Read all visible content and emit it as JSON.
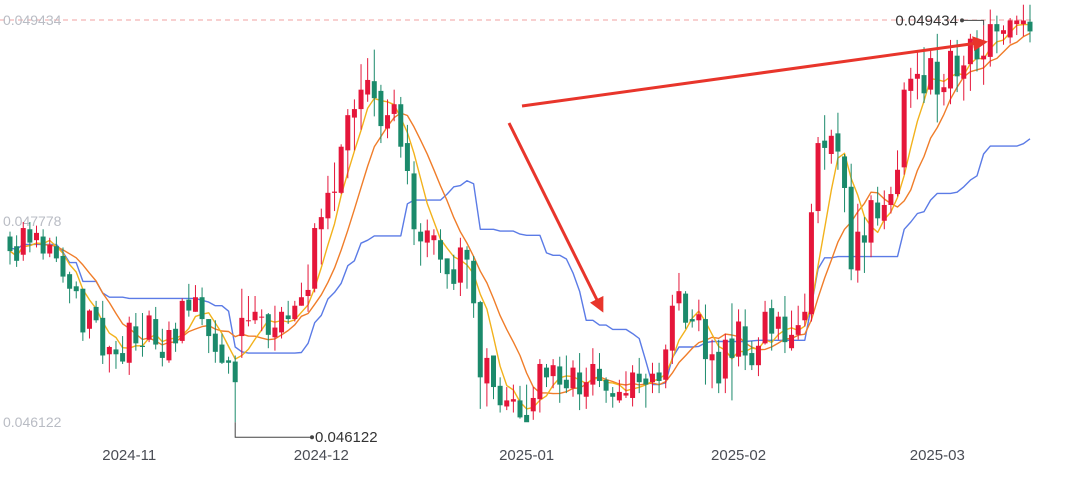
{
  "chart_data": {
    "type": "candlestick",
    "y_axis": {
      "ticks": [
        "0.049434",
        "0.047778",
        "0.046122"
      ],
      "tick_values": [
        0.049434,
        0.047778,
        0.046122
      ],
      "range": [
        0.04585,
        0.04965
      ]
    },
    "x_axis": {
      "ticks": [
        "2024-11",
        "2024-12",
        "2025-01",
        "2025-02",
        "2025-03"
      ],
      "tick_candle_index": [
        18,
        47,
        78,
        110,
        140
      ]
    },
    "annotations": {
      "high_label": "0.049434",
      "low_label": "0.046122",
      "high_candle_index": 147,
      "low_candle_index": 34
    },
    "colors": {
      "up": "#e5163a",
      "down": "#1b8a6b",
      "ma_fast": "#f2b21c",
      "ma_mid": "#f07d2a",
      "ma_slow": "#5b7be6",
      "dash": "#f0a0a0",
      "arrow": "#e8352b",
      "axis_text": "#b9bcc4"
    },
    "candles": [
      [
        0.04765,
        0.04753,
        0.04769,
        0.04742
      ],
      [
        0.04757,
        0.04745,
        0.04766,
        0.0474
      ],
      [
        0.0475,
        0.04772,
        0.04777,
        0.04745
      ],
      [
        0.04771,
        0.0476,
        0.04777,
        0.04752
      ],
      [
        0.04762,
        0.04768,
        0.04774,
        0.04756
      ],
      [
        0.04765,
        0.04751,
        0.04771,
        0.04746
      ],
      [
        0.04751,
        0.04758,
        0.04764,
        0.04748
      ],
      [
        0.04757,
        0.04747,
        0.04765,
        0.04744
      ],
      [
        0.04749,
        0.04732,
        0.04756,
        0.04727
      ],
      [
        0.04734,
        0.04722,
        0.04736,
        0.0471
      ],
      [
        0.04724,
        0.0472,
        0.04728,
        0.04714
      ],
      [
        0.04722,
        0.04686,
        0.04722,
        0.04679
      ],
      [
        0.04689,
        0.04704,
        0.04705,
        0.04681
      ],
      [
        0.04707,
        0.04696,
        0.04712,
        0.04694
      ],
      [
        0.04698,
        0.04667,
        0.04712,
        0.0466
      ],
      [
        0.04668,
        0.04674,
        0.04675,
        0.04653
      ],
      [
        0.04672,
        0.04668,
        0.04679,
        0.04656
      ],
      [
        0.04669,
        0.04662,
        0.04683,
        0.0466
      ],
      [
        0.04661,
        0.04694,
        0.04699,
        0.04651
      ],
      [
        0.04691,
        0.04677,
        0.04702,
        0.04671
      ],
      [
        0.04675,
        0.04674,
        0.04702,
        0.04666
      ],
      [
        0.0468,
        0.047,
        0.04704,
        0.04678
      ],
      [
        0.04697,
        0.04676,
        0.04707,
        0.04672
      ],
      [
        0.0467,
        0.04665,
        0.04689,
        0.04658
      ],
      [
        0.04663,
        0.04688,
        0.04695,
        0.04661
      ],
      [
        0.04689,
        0.04677,
        0.04694,
        0.0467
      ],
      [
        0.04679,
        0.04712,
        0.04714,
        0.04677
      ],
      [
        0.04713,
        0.04704,
        0.04726,
        0.04699
      ],
      [
        0.04703,
        0.04715,
        0.04725,
        0.04703
      ],
      [
        0.04715,
        0.04697,
        0.04723,
        0.04692
      ],
      [
        0.04697,
        0.04683,
        0.04697,
        0.04669
      ],
      [
        0.04685,
        0.0467,
        0.04696,
        0.04661
      ],
      [
        0.04676,
        0.04661,
        0.04685,
        0.0466
      ],
      [
        0.04663,
        0.04661,
        0.04666,
        0.04652
      ],
      [
        0.04662,
        0.04645,
        0.04667,
        0.04612
      ],
      [
        0.04683,
        0.04698,
        0.04722,
        0.04665
      ],
      [
        0.04696,
        0.04696,
        0.04716,
        0.04691
      ],
      [
        0.04696,
        0.04703,
        0.04716,
        0.04693
      ],
      [
        0.04699,
        0.04699,
        0.04705,
        0.04687
      ],
      [
        0.04701,
        0.04684,
        0.04702,
        0.04673
      ],
      [
        0.04682,
        0.0469,
        0.04708,
        0.04671
      ],
      [
        0.04686,
        0.04703,
        0.04707,
        0.04681
      ],
      [
        0.047,
        0.04697,
        0.04712,
        0.04693
      ],
      [
        0.04697,
        0.04708,
        0.04712,
        0.04695
      ],
      [
        0.04708,
        0.04715,
        0.04727,
        0.04708
      ],
      [
        0.04716,
        0.04721,
        0.04742,
        0.04703
      ],
      [
        0.04722,
        0.04772,
        0.04776,
        0.04719
      ],
      [
        0.04771,
        0.04781,
        0.04788,
        0.04742
      ],
      [
        0.0478,
        0.04801,
        0.04815,
        0.04771
      ],
      [
        0.04801,
        0.04802,
        0.04826,
        0.04786
      ],
      [
        0.04801,
        0.04839,
        0.04841,
        0.048
      ],
      [
        0.04836,
        0.04865,
        0.0487,
        0.04813
      ],
      [
        0.04863,
        0.0487,
        0.04878,
        0.04836
      ],
      [
        0.0487,
        0.04886,
        0.04907,
        0.04853
      ],
      [
        0.04882,
        0.04894,
        0.04912,
        0.04876
      ],
      [
        0.04893,
        0.04879,
        0.04919,
        0.04864
      ],
      [
        0.04885,
        0.04856,
        0.0489,
        0.04842
      ],
      [
        0.04854,
        0.04865,
        0.04878,
        0.04846
      ],
      [
        0.04866,
        0.04874,
        0.04886,
        0.0486
      ],
      [
        0.04874,
        0.04839,
        0.0488,
        0.0483
      ],
      [
        0.04842,
        0.04819,
        0.04857,
        0.04808
      ],
      [
        0.04817,
        0.04771,
        0.04827,
        0.04758
      ],
      [
        0.04769,
        0.04761,
        0.04776,
        0.04741
      ],
      [
        0.0476,
        0.0477,
        0.04779,
        0.04748
      ],
      [
        0.04762,
        0.04766,
        0.04771,
        0.0475
      ],
      [
        0.04762,
        0.04746,
        0.04771,
        0.04735
      ],
      [
        0.04747,
        0.04734,
        0.04747,
        0.04722
      ],
      [
        0.04738,
        0.04726,
        0.0475,
        0.04721
      ],
      [
        0.04727,
        0.04756,
        0.04764,
        0.04716
      ],
      [
        0.04754,
        0.04746,
        0.04757,
        0.04722
      ],
      [
        0.04745,
        0.0471,
        0.04749,
        0.04698
      ],
      [
        0.04711,
        0.04649,
        0.04712,
        0.04623
      ],
      [
        0.04644,
        0.04665,
        0.04673,
        0.04625
      ],
      [
        0.04667,
        0.04641,
        0.04667,
        0.04631
      ],
      [
        0.04642,
        0.04626,
        0.04649,
        0.0462
      ],
      [
        0.04625,
        0.0463,
        0.04641,
        0.04622
      ],
      [
        0.04629,
        0.04631,
        0.04643,
        0.0462
      ],
      [
        0.0463,
        0.04616,
        0.04642,
        0.04615
      ],
      [
        0.04618,
        0.04612,
        0.04643,
        0.04613
      ],
      [
        0.04621,
        0.04632,
        0.04641,
        0.04614
      ],
      [
        0.04631,
        0.0466,
        0.04664,
        0.0462
      ],
      [
        0.04657,
        0.04649,
        0.0466,
        0.04641
      ],
      [
        0.0465,
        0.04659,
        0.04664,
        0.0464
      ],
      [
        0.04658,
        0.04643,
        0.04666,
        0.04628
      ],
      [
        0.04647,
        0.0464,
        0.04667,
        0.04636
      ],
      [
        0.0464,
        0.04657,
        0.04663,
        0.04633
      ],
      [
        0.04653,
        0.04635,
        0.04669,
        0.04622
      ],
      [
        0.04633,
        0.04645,
        0.04657,
        0.04623
      ],
      [
        0.04643,
        0.0466,
        0.04673,
        0.04634
      ],
      [
        0.04656,
        0.04646,
        0.04669,
        0.04641
      ],
      [
        0.04647,
        0.04638,
        0.04649,
        0.04628
      ],
      [
        0.04636,
        0.04633,
        0.04641,
        0.04624
      ],
      [
        0.0463,
        0.04637,
        0.04647,
        0.04628
      ],
      [
        0.04634,
        0.04636,
        0.04654,
        0.04632
      ],
      [
        0.04632,
        0.04653,
        0.04659,
        0.04625
      ],
      [
        0.04652,
        0.04645,
        0.04665,
        0.04636
      ],
      [
        0.04648,
        0.04643,
        0.04652,
        0.04624
      ],
      [
        0.04645,
        0.04652,
        0.04661,
        0.04636
      ],
      [
        0.04653,
        0.04646,
        0.04661,
        0.04636
      ],
      [
        0.04647,
        0.04672,
        0.04676,
        0.0464
      ],
      [
        0.04671,
        0.04708,
        0.04717,
        0.0466
      ],
      [
        0.0471,
        0.0472,
        0.04735,
        0.04704
      ],
      [
        0.04718,
        0.04694,
        0.0472,
        0.04689
      ],
      [
        0.04697,
        0.04695,
        0.04705,
        0.0469
      ],
      [
        0.04696,
        0.04701,
        0.04713,
        0.04687
      ],
      [
        0.04697,
        0.04664,
        0.04709,
        0.04643
      ],
      [
        0.04663,
        0.04668,
        0.0468,
        0.0464
      ],
      [
        0.0467,
        0.04644,
        0.0468,
        0.04636
      ],
      [
        0.04648,
        0.0468,
        0.04685,
        0.04636
      ],
      [
        0.04681,
        0.04665,
        0.0471,
        0.0463
      ],
      [
        0.04666,
        0.04695,
        0.04705,
        0.04658
      ],
      [
        0.04691,
        0.04667,
        0.04705,
        0.04655
      ],
      [
        0.04669,
        0.04659,
        0.04679,
        0.04655
      ],
      [
        0.04659,
        0.04675,
        0.04682,
        0.0465
      ],
      [
        0.04677,
        0.04703,
        0.04712,
        0.04676
      ],
      [
        0.04706,
        0.04685,
        0.04713,
        0.04671
      ],
      [
        0.04689,
        0.04699,
        0.04703,
        0.0468
      ],
      [
        0.04699,
        0.04678,
        0.04716,
        0.04669
      ],
      [
        0.04673,
        0.04684,
        0.04704,
        0.04671
      ],
      [
        0.04684,
        0.04692,
        0.04708,
        0.0468
      ],
      [
        0.04696,
        0.04703,
        0.04718,
        0.04691
      ],
      [
        0.04701,
        0.04785,
        0.04792,
        0.04695
      ],
      [
        0.04786,
        0.04842,
        0.04847,
        0.04776
      ],
      [
        0.04844,
        0.04838,
        0.04865,
        0.0482
      ],
      [
        0.04833,
        0.04848,
        0.04853,
        0.04825
      ],
      [
        0.0485,
        0.04835,
        0.04867,
        0.0482
      ],
      [
        0.04831,
        0.04805,
        0.04833,
        0.04785
      ],
      [
        0.04806,
        0.04738,
        0.04825,
        0.04729
      ],
      [
        0.04737,
        0.04769,
        0.04792,
        0.04727
      ],
      [
        0.04766,
        0.0476,
        0.04781,
        0.04735
      ],
      [
        0.0476,
        0.04795,
        0.04799,
        0.04748
      ],
      [
        0.04793,
        0.0478,
        0.04806,
        0.04774
      ],
      [
        0.04778,
        0.04791,
        0.04803,
        0.04771
      ],
      [
        0.04791,
        0.048,
        0.04806,
        0.04784
      ],
      [
        0.048,
        0.0482,
        0.04836,
        0.04798
      ],
      [
        0.04822,
        0.04886,
        0.04892,
        0.04816
      ],
      [
        0.04885,
        0.04895,
        0.04904,
        0.04871
      ],
      [
        0.04895,
        0.04899,
        0.04918,
        0.04878
      ],
      [
        0.04898,
        0.04883,
        0.04921,
        0.04875
      ],
      [
        0.04886,
        0.04912,
        0.04918,
        0.04882
      ],
      [
        0.04909,
        0.04882,
        0.04932,
        0.04859
      ],
      [
        0.04884,
        0.04888,
        0.04899,
        0.04873
      ],
      [
        0.04887,
        0.04918,
        0.04927,
        0.04874
      ],
      [
        0.04914,
        0.04897,
        0.04927,
        0.04884
      ],
      [
        0.04895,
        0.04906,
        0.04914,
        0.04877
      ],
      [
        0.04907,
        0.04928,
        0.04932,
        0.04885
      ],
      [
        0.04925,
        0.04911,
        0.04935,
        0.04901
      ],
      [
        0.04911,
        0.04914,
        0.04939,
        0.0489
      ],
      [
        0.04913,
        0.0494,
        0.04952,
        0.04905
      ],
      [
        0.0494,
        0.04934,
        0.04947,
        0.04916
      ],
      [
        0.04932,
        0.04935,
        0.04939,
        0.04923
      ],
      [
        0.04929,
        0.04943,
        0.04945,
        0.04924
      ],
      [
        0.0494,
        0.04943,
        0.04947,
        0.04931
      ],
      [
        0.0494,
        0.04943,
        0.04956,
        0.0493
      ],
      [
        0.04942,
        0.04934,
        0.04956,
        0.04925
      ]
    ]
  }
}
